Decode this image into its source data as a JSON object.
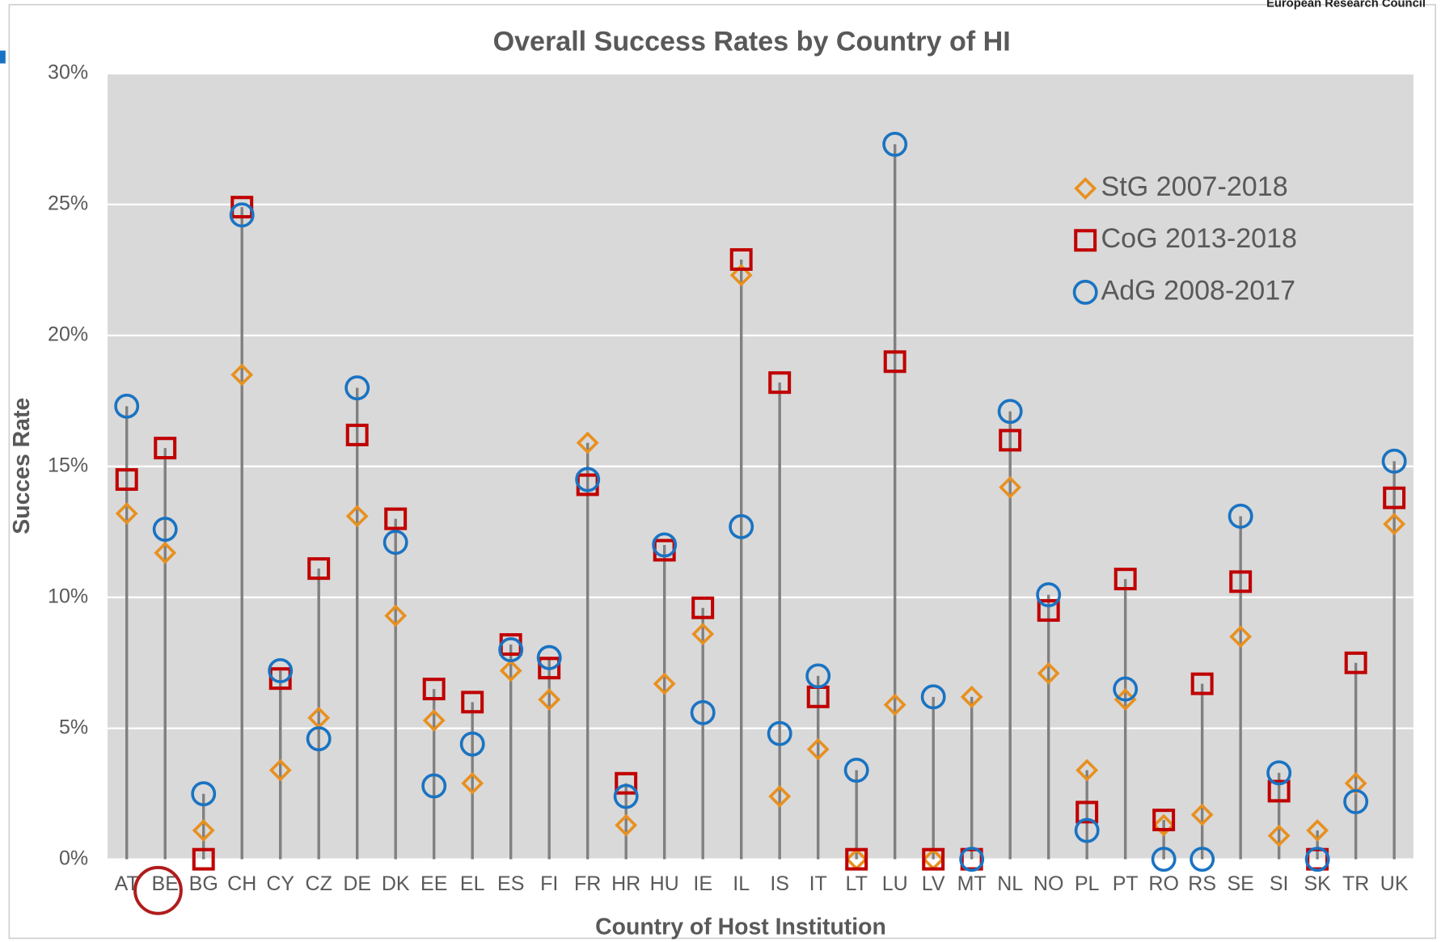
{
  "header": {
    "org": "European Research Council"
  },
  "chart_data": {
    "type": "dot-stem",
    "title": "Overall Success Rates by Country of HI",
    "x_label": "Country of Host Institution",
    "y_label": "Succes Rate",
    "categories": [
      "AT",
      "BE",
      "BG",
      "CH",
      "CY",
      "CZ",
      "DE",
      "DK",
      "EE",
      "EL",
      "ES",
      "FI",
      "FR",
      "HR",
      "HU",
      "IE",
      "IL",
      "IS",
      "IT",
      "LT",
      "LU",
      "LV",
      "MT",
      "NL",
      "NO",
      "PL",
      "PT",
      "RO",
      "RS",
      "SE",
      "SI",
      "SK",
      "TR",
      "UK"
    ],
    "series": [
      {
        "name": "StG 2007-2018",
        "color": "#e8901f",
        "marker": "diamond",
        "values": [
          13.2,
          11.7,
          1.1,
          18.5,
          3.4,
          5.4,
          13.1,
          9.3,
          5.3,
          2.9,
          7.2,
          6.1,
          15.9,
          1.3,
          6.7,
          8.6,
          22.3,
          2.4,
          4.2,
          0,
          5.9,
          0,
          6.2,
          14.2,
          7.1,
          3.4,
          6.1,
          1.3,
          1.7,
          8.5,
          0.9,
          1.1,
          2.9,
          12.8
        ]
      },
      {
        "name": "CoG 2013-2018",
        "color": "#c00000",
        "marker": "square",
        "values": [
          14.5,
          15.7,
          0,
          24.9,
          6.9,
          11.1,
          16.2,
          13.0,
          6.5,
          6.0,
          8.2,
          7.3,
          14.3,
          2.9,
          11.8,
          9.6,
          22.9,
          18.2,
          6.2,
          0,
          19.0,
          0,
          0,
          16.0,
          9.5,
          1.8,
          10.7,
          1.5,
          6.7,
          10.6,
          2.6,
          0,
          7.5,
          13.8
        ]
      },
      {
        "name": "AdG 2008-2017",
        "color": "#1a73c2",
        "marker": "circle",
        "values": [
          17.3,
          12.6,
          2.5,
          24.6,
          7.2,
          4.6,
          18.0,
          12.1,
          2.8,
          4.4,
          8.0,
          7.7,
          14.5,
          2.4,
          12.0,
          5.6,
          12.7,
          4.8,
          7.0,
          3.4,
          27.3,
          6.2,
          0,
          17.1,
          10.1,
          1.1,
          6.5,
          0,
          0,
          13.1,
          3.3,
          0,
          2.2,
          15.2
        ]
      }
    ],
    "ylim": [
      0,
      30
    ],
    "yticks": [
      {
        "value": 0,
        "label": "0%"
      },
      {
        "value": 5,
        "label": "5%"
      },
      {
        "value": 10,
        "label": "10%"
      },
      {
        "value": 15,
        "label": "15%"
      },
      {
        "value": 20,
        "label": "20%"
      },
      {
        "value": 25,
        "label": "25%"
      },
      {
        "value": 30,
        "label": "30%"
      }
    ],
    "grid": true,
    "legend": "upper right"
  }
}
